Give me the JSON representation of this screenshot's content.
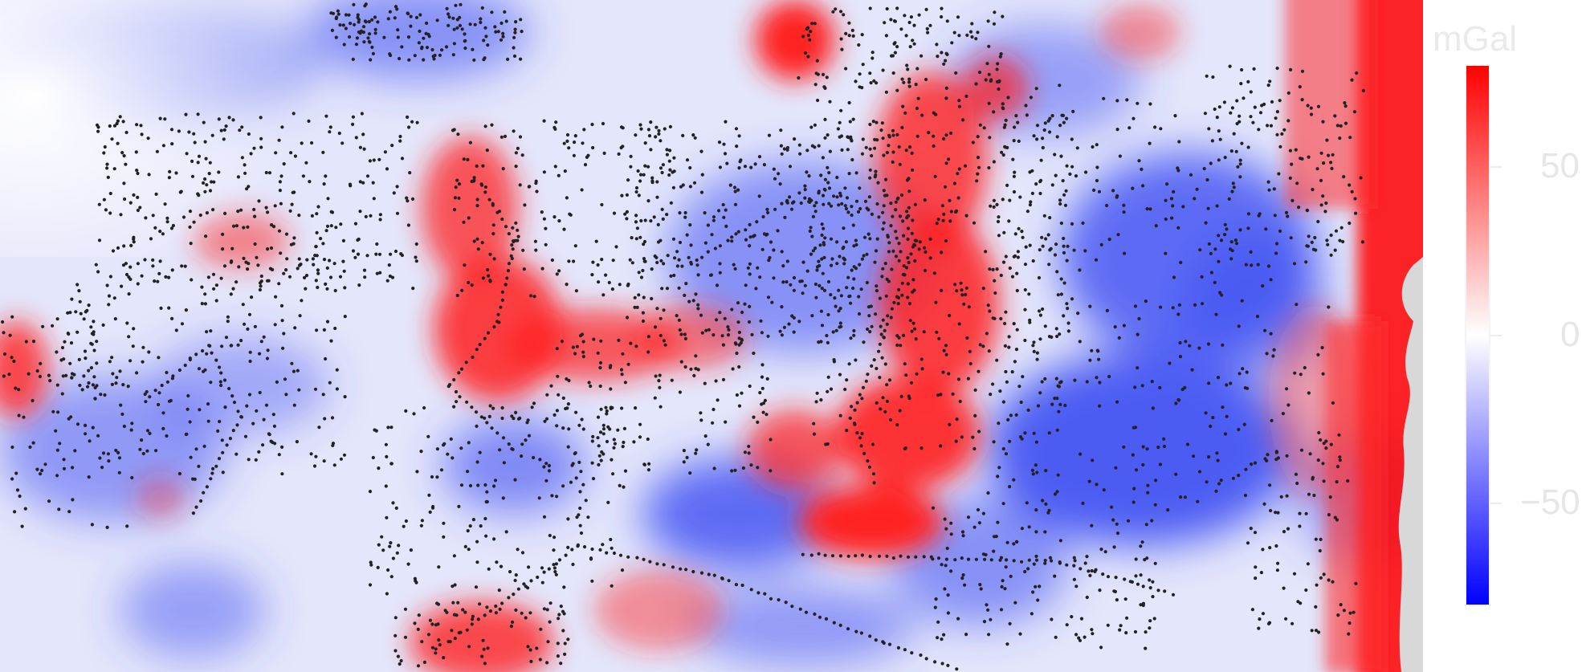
{
  "colorbar": {
    "unit": "mGal",
    "min": -80,
    "max": 80,
    "colors": {
      "high": "#ff0000",
      "mid": "#ffffff",
      "low": "#0000ff"
    },
    "ticks": [
      {
        "value": 50,
        "label": "50"
      },
      {
        "value": 0,
        "label": "0"
      },
      {
        "value": -50,
        "label": "−50"
      }
    ]
  },
  "map": {
    "point_color": "#222222",
    "positive_color": "#ff0000",
    "negative_color": "#0000ff",
    "nodata_color": "#d8d8d8"
  }
}
